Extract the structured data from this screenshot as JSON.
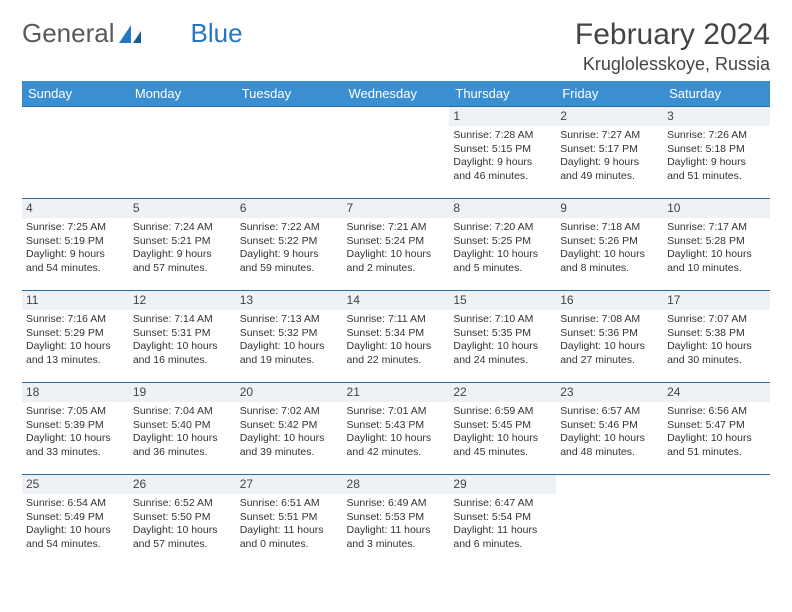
{
  "brand": {
    "part1": "General",
    "part2": "Blue"
  },
  "header": {
    "month_title": "February 2024",
    "location": "Kruglolesskoye, Russia"
  },
  "colors": {
    "header_bg": "#3b8fd1",
    "border": "#2a6da3",
    "daynum_bg": "#eef2f6",
    "brand_blue": "#2478bf"
  },
  "day_labels": [
    "Sunday",
    "Monday",
    "Tuesday",
    "Wednesday",
    "Thursday",
    "Friday",
    "Saturday"
  ],
  "weeks": [
    [
      null,
      null,
      null,
      null,
      {
        "n": "1",
        "sr": "Sunrise: 7:28 AM",
        "ss": "Sunset: 5:15 PM",
        "d1": "Daylight: 9 hours",
        "d2": "and 46 minutes."
      },
      {
        "n": "2",
        "sr": "Sunrise: 7:27 AM",
        "ss": "Sunset: 5:17 PM",
        "d1": "Daylight: 9 hours",
        "d2": "and 49 minutes."
      },
      {
        "n": "3",
        "sr": "Sunrise: 7:26 AM",
        "ss": "Sunset: 5:18 PM",
        "d1": "Daylight: 9 hours",
        "d2": "and 51 minutes."
      }
    ],
    [
      {
        "n": "4",
        "sr": "Sunrise: 7:25 AM",
        "ss": "Sunset: 5:19 PM",
        "d1": "Daylight: 9 hours",
        "d2": "and 54 minutes."
      },
      {
        "n": "5",
        "sr": "Sunrise: 7:24 AM",
        "ss": "Sunset: 5:21 PM",
        "d1": "Daylight: 9 hours",
        "d2": "and 57 minutes."
      },
      {
        "n": "6",
        "sr": "Sunrise: 7:22 AM",
        "ss": "Sunset: 5:22 PM",
        "d1": "Daylight: 9 hours",
        "d2": "and 59 minutes."
      },
      {
        "n": "7",
        "sr": "Sunrise: 7:21 AM",
        "ss": "Sunset: 5:24 PM",
        "d1": "Daylight: 10 hours",
        "d2": "and 2 minutes."
      },
      {
        "n": "8",
        "sr": "Sunrise: 7:20 AM",
        "ss": "Sunset: 5:25 PM",
        "d1": "Daylight: 10 hours",
        "d2": "and 5 minutes."
      },
      {
        "n": "9",
        "sr": "Sunrise: 7:18 AM",
        "ss": "Sunset: 5:26 PM",
        "d1": "Daylight: 10 hours",
        "d2": "and 8 minutes."
      },
      {
        "n": "10",
        "sr": "Sunrise: 7:17 AM",
        "ss": "Sunset: 5:28 PM",
        "d1": "Daylight: 10 hours",
        "d2": "and 10 minutes."
      }
    ],
    [
      {
        "n": "11",
        "sr": "Sunrise: 7:16 AM",
        "ss": "Sunset: 5:29 PM",
        "d1": "Daylight: 10 hours",
        "d2": "and 13 minutes."
      },
      {
        "n": "12",
        "sr": "Sunrise: 7:14 AM",
        "ss": "Sunset: 5:31 PM",
        "d1": "Daylight: 10 hours",
        "d2": "and 16 minutes."
      },
      {
        "n": "13",
        "sr": "Sunrise: 7:13 AM",
        "ss": "Sunset: 5:32 PM",
        "d1": "Daylight: 10 hours",
        "d2": "and 19 minutes."
      },
      {
        "n": "14",
        "sr": "Sunrise: 7:11 AM",
        "ss": "Sunset: 5:34 PM",
        "d1": "Daylight: 10 hours",
        "d2": "and 22 minutes."
      },
      {
        "n": "15",
        "sr": "Sunrise: 7:10 AM",
        "ss": "Sunset: 5:35 PM",
        "d1": "Daylight: 10 hours",
        "d2": "and 24 minutes."
      },
      {
        "n": "16",
        "sr": "Sunrise: 7:08 AM",
        "ss": "Sunset: 5:36 PM",
        "d1": "Daylight: 10 hours",
        "d2": "and 27 minutes."
      },
      {
        "n": "17",
        "sr": "Sunrise: 7:07 AM",
        "ss": "Sunset: 5:38 PM",
        "d1": "Daylight: 10 hours",
        "d2": "and 30 minutes."
      }
    ],
    [
      {
        "n": "18",
        "sr": "Sunrise: 7:05 AM",
        "ss": "Sunset: 5:39 PM",
        "d1": "Daylight: 10 hours",
        "d2": "and 33 minutes."
      },
      {
        "n": "19",
        "sr": "Sunrise: 7:04 AM",
        "ss": "Sunset: 5:40 PM",
        "d1": "Daylight: 10 hours",
        "d2": "and 36 minutes."
      },
      {
        "n": "20",
        "sr": "Sunrise: 7:02 AM",
        "ss": "Sunset: 5:42 PM",
        "d1": "Daylight: 10 hours",
        "d2": "and 39 minutes."
      },
      {
        "n": "21",
        "sr": "Sunrise: 7:01 AM",
        "ss": "Sunset: 5:43 PM",
        "d1": "Daylight: 10 hours",
        "d2": "and 42 minutes."
      },
      {
        "n": "22",
        "sr": "Sunrise: 6:59 AM",
        "ss": "Sunset: 5:45 PM",
        "d1": "Daylight: 10 hours",
        "d2": "and 45 minutes."
      },
      {
        "n": "23",
        "sr": "Sunrise: 6:57 AM",
        "ss": "Sunset: 5:46 PM",
        "d1": "Daylight: 10 hours",
        "d2": "and 48 minutes."
      },
      {
        "n": "24",
        "sr": "Sunrise: 6:56 AM",
        "ss": "Sunset: 5:47 PM",
        "d1": "Daylight: 10 hours",
        "d2": "and 51 minutes."
      }
    ],
    [
      {
        "n": "25",
        "sr": "Sunrise: 6:54 AM",
        "ss": "Sunset: 5:49 PM",
        "d1": "Daylight: 10 hours",
        "d2": "and 54 minutes."
      },
      {
        "n": "26",
        "sr": "Sunrise: 6:52 AM",
        "ss": "Sunset: 5:50 PM",
        "d1": "Daylight: 10 hours",
        "d2": "and 57 minutes."
      },
      {
        "n": "27",
        "sr": "Sunrise: 6:51 AM",
        "ss": "Sunset: 5:51 PM",
        "d1": "Daylight: 11 hours",
        "d2": "and 0 minutes."
      },
      {
        "n": "28",
        "sr": "Sunrise: 6:49 AM",
        "ss": "Sunset: 5:53 PM",
        "d1": "Daylight: 11 hours",
        "d2": "and 3 minutes."
      },
      {
        "n": "29",
        "sr": "Sunrise: 6:47 AM",
        "ss": "Sunset: 5:54 PM",
        "d1": "Daylight: 11 hours",
        "d2": "and 6 minutes."
      },
      null,
      null
    ]
  ]
}
